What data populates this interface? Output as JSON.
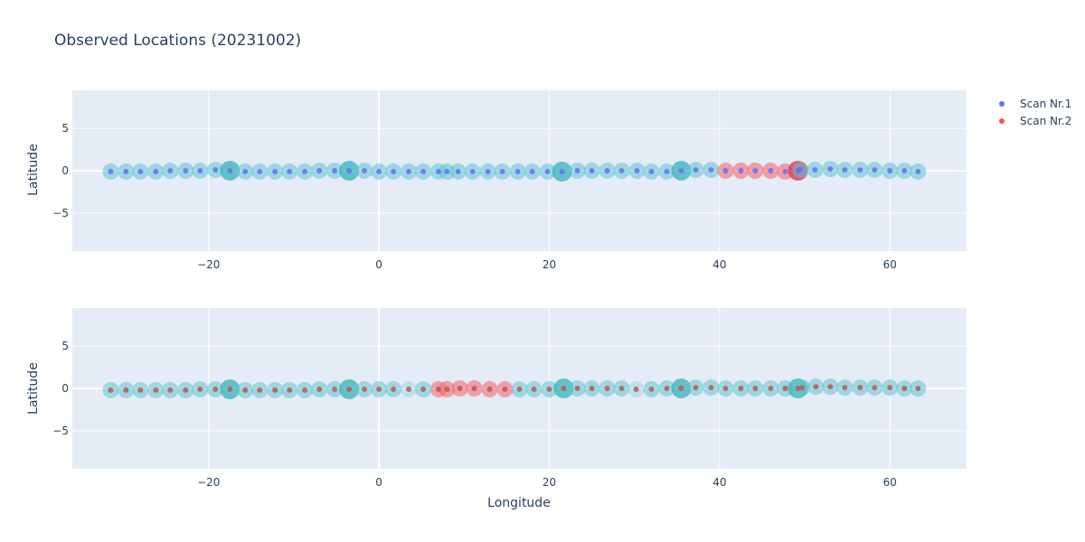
{
  "title": "Observed Locations (20231002)",
  "xlabel": "Longitude",
  "ylabel": "Latitude",
  "legend": [
    {
      "name": "Scan Nr.1",
      "color": "#636efa"
    },
    {
      "name": "Scan Nr.2",
      "color": "#ef553b"
    }
  ],
  "colors": {
    "plot_bg": "#e5ecf6",
    "font": "#2a3f5f",
    "halo_teal": "#5fc5cf",
    "halo_red": "#f26b73",
    "halo_teal_strong": "#36b3b8",
    "halo_red_strong": "#e0405a"
  },
  "chart_data": [
    {
      "type": "scatter",
      "name": "top",
      "xlim": [
        -36,
        69
      ],
      "ylim": [
        -9.5,
        9.5
      ],
      "xticks": [
        -20,
        0,
        20,
        40,
        60
      ],
      "yticks": [
        -5,
        0,
        5
      ],
      "grid": true,
      "legend_position": "top-right",
      "points": {
        "x": [
          -31.5,
          -29.7,
          -28,
          -26.2,
          -24.5,
          -22.7,
          -21,
          -19.2,
          -17.5,
          -15.7,
          -14,
          -12.2,
          -10.5,
          -8.7,
          -7,
          -5.2,
          -3.5,
          -1.7,
          0,
          1.7,
          3.5,
          5.2,
          7,
          8,
          9.3,
          11,
          12.8,
          14.5,
          16.3,
          18,
          19.8,
          21.5,
          23.3,
          25,
          26.8,
          28.5,
          30.3,
          32,
          33.8,
          35.5,
          37.2,
          39,
          40.7,
          42.5,
          44.2,
          46,
          47.7,
          49.2,
          49.5,
          51.2,
          53,
          54.7,
          56.5,
          58.2,
          60,
          61.7,
          63.3
        ],
        "y": [
          -0.1,
          -0.1,
          -0.1,
          -0.1,
          0,
          0,
          0,
          0.1,
          0,
          -0.1,
          -0.1,
          -0.1,
          -0.1,
          -0.1,
          0,
          0,
          0,
          0,
          -0.1,
          -0.1,
          -0.1,
          -0.1,
          -0.1,
          -0.1,
          -0.1,
          -0.1,
          -0.1,
          -0.1,
          -0.1,
          -0.1,
          -0.1,
          -0.1,
          0,
          0,
          0,
          0,
          0,
          -0.1,
          -0.1,
          0,
          0.1,
          0.1,
          0,
          0,
          0,
          0,
          -0.1,
          0,
          0.1,
          0.1,
          0.2,
          0.1,
          0.1,
          0.1,
          0,
          0,
          -0.1
        ],
        "halo_group": [
          0,
          0,
          0,
          0,
          0,
          0,
          0,
          0,
          2,
          0,
          0,
          0,
          0,
          0,
          0,
          0,
          2,
          0,
          0,
          0,
          0,
          0,
          0,
          0,
          0,
          0,
          0,
          0,
          0,
          0,
          0,
          2,
          0,
          0,
          0,
          0,
          0,
          0,
          0,
          2,
          0,
          0,
          1,
          1,
          1,
          1,
          1,
          3,
          0,
          0,
          0,
          0,
          0,
          0,
          0,
          0,
          0
        ],
        "series": [
          1,
          1,
          1,
          1,
          1,
          1,
          1,
          1,
          1,
          1,
          1,
          1,
          1,
          1,
          1,
          1,
          1,
          1,
          1,
          1,
          1,
          1,
          1,
          1,
          1,
          1,
          1,
          1,
          1,
          1,
          1,
          1,
          1,
          1,
          1,
          1,
          1,
          1,
          1,
          1,
          1,
          1,
          1,
          1,
          1,
          1,
          1,
          1,
          1,
          1,
          1,
          1,
          1,
          1,
          1,
          1,
          1
        ]
      }
    },
    {
      "type": "scatter",
      "name": "bottom",
      "xlim": [
        -36,
        69
      ],
      "ylim": [
        -9.5,
        9.5
      ],
      "xticks": [
        -20,
        0,
        20,
        40,
        60
      ],
      "yticks": [
        -5,
        0,
        5
      ],
      "grid": true,
      "points": {
        "x": [
          -31.5,
          -29.7,
          -28,
          -26.2,
          -24.5,
          -22.7,
          -21,
          -19.2,
          -17.5,
          -15.7,
          -14,
          -12.2,
          -10.5,
          -8.7,
          -7,
          -5.2,
          -3.5,
          -1.7,
          0,
          1.7,
          3.5,
          5.2,
          7,
          8,
          9.5,
          11.2,
          13,
          14.8,
          16.5,
          18.2,
          20,
          21.7,
          23.3,
          25,
          26.8,
          28.5,
          30.2,
          32,
          33.8,
          35.5,
          37.2,
          39,
          40.7,
          42.5,
          44.2,
          46,
          47.7,
          49.2,
          49.7,
          51.3,
          53,
          54.7,
          56.5,
          58.2,
          60,
          61.7,
          63.3
        ],
        "y": [
          -0.2,
          -0.2,
          -0.2,
          -0.2,
          -0.2,
          -0.2,
          -0.1,
          -0.1,
          -0.1,
          -0.2,
          -0.2,
          -0.2,
          -0.2,
          -0.2,
          -0.1,
          -0.1,
          -0.1,
          -0.1,
          -0.1,
          -0.1,
          -0.1,
          -0.1,
          -0.1,
          -0.1,
          0,
          0,
          -0.1,
          -0.1,
          -0.1,
          -0.1,
          -0.1,
          0,
          0,
          0,
          0,
          0,
          -0.1,
          -0.1,
          0,
          0,
          0.1,
          0.1,
          0,
          0,
          0,
          0,
          0,
          0,
          0.1,
          0.2,
          0.2,
          0.1,
          0.1,
          0.1,
          0.1,
          0,
          0
        ],
        "halo_group": [
          0,
          0,
          0,
          0,
          0,
          0,
          0,
          0,
          2,
          0,
          0,
          0,
          0,
          0,
          0,
          0,
          2,
          0,
          0,
          0,
          4,
          0,
          1,
          1,
          1,
          1,
          1,
          1,
          0,
          0,
          0,
          2,
          0,
          0,
          0,
          0,
          4,
          0,
          0,
          2,
          0,
          0,
          0,
          0,
          0,
          0,
          0,
          2,
          0,
          0,
          0,
          0,
          0,
          0,
          0,
          0,
          0
        ],
        "series": [
          2,
          2,
          2,
          2,
          2,
          2,
          2,
          2,
          2,
          2,
          2,
          2,
          2,
          2,
          2,
          2,
          2,
          2,
          2,
          2,
          2,
          2,
          2,
          2,
          2,
          2,
          2,
          2,
          2,
          2,
          2,
          2,
          2,
          2,
          2,
          2,
          2,
          2,
          2,
          2,
          2,
          2,
          2,
          2,
          2,
          2,
          2,
          2,
          2,
          2,
          2,
          2,
          2,
          2,
          2,
          2,
          2
        ]
      }
    }
  ]
}
